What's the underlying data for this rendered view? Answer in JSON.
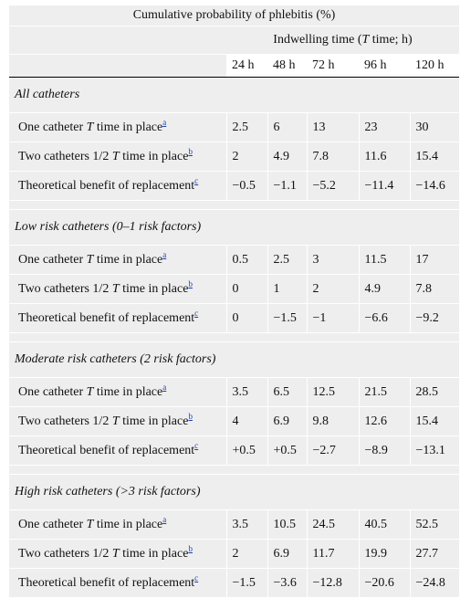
{
  "title": "Cumulative probability of phlebitis (%)",
  "header_pre": "Indwelling time (",
  "header_T": "T",
  "header_post": " time; h)",
  "hours": [
    "24 h",
    "48 h",
    "72 h",
    "96 h",
    "120 h"
  ],
  "footnotes": {
    "a": "a",
    "b": "b",
    "c": "c"
  },
  "row_text": {
    "one_pre": "One catheter ",
    "one_T": "T",
    "one_post": " time in place",
    "two_pre": "Two catheters 1/2 ",
    "two_T": "T",
    "two_post": " time in place",
    "benefit": "Theoretical benefit of replacement"
  },
  "sections": [
    {
      "heading": "All catheters",
      "one": [
        "2.5",
        "6",
        "13",
        "23",
        "30"
      ],
      "two": [
        "2",
        "4.9",
        "7.8",
        "11.6",
        "15.4"
      ],
      "benefit": [
        "−0.5",
        "−1.1",
        "−5.2",
        "−11.4",
        "−14.6"
      ]
    },
    {
      "heading": "Low risk catheters (0–1 risk factors)",
      "one": [
        "0.5",
        "2.5",
        "3",
        "11.5",
        "17"
      ],
      "two": [
        "0",
        "1",
        "2",
        "4.9",
        "7.8"
      ],
      "benefit": [
        "0",
        "−1.5",
        "−1",
        "−6.6",
        "−9.2"
      ]
    },
    {
      "heading": "Moderate risk catheters (2 risk factors)",
      "one": [
        "3.5",
        "6.5",
        "12.5",
        "21.5",
        "28.5"
      ],
      "two": [
        "4",
        "6.9",
        "9.8",
        "12.6",
        "15.4"
      ],
      "benefit": [
        "+0.5",
        "+0.5",
        "−2.7",
        "−8.9",
        "−13.1"
      ]
    },
    {
      "heading": "High risk catheters (>3 risk factors)",
      "one": [
        "3.5",
        "10.5",
        "24.5",
        "40.5",
        "52.5"
      ],
      "two": [
        "2",
        "6.9",
        "11.7",
        "19.9",
        "27.7"
      ],
      "benefit": [
        "−1.5",
        "−3.6",
        "−12.8",
        "−20.6",
        "−24.8"
      ]
    }
  ]
}
